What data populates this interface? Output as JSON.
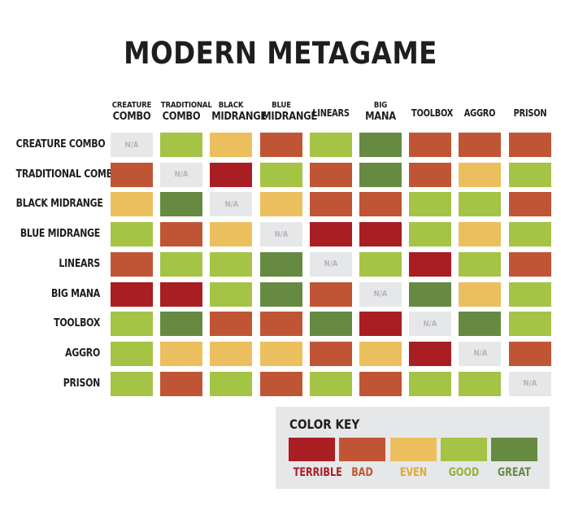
{
  "title": "MODERN METAGAME",
  "na_label": "N/A",
  "colors": {
    "terrible": "#a81e23",
    "bad": "#c05535",
    "even": "#ecbf5e",
    "good": "#a5c345",
    "great": "#668a42",
    "na": "#e6e7e8"
  },
  "chart_data": {
    "type": "heatmap",
    "title": "MODERN METAGAME",
    "row_labels": [
      "CREATURE COMBO",
      "TRADITIONAL COMBO",
      "BLACK MIDRANGE",
      "BLUE MIDRANGE",
      "LINEARS",
      "BIG MANA",
      "TOOLBOX",
      "AGGRO",
      "PRISON"
    ],
    "columns": [
      {
        "line1": "CREATURE",
        "line2": "COMBO"
      },
      {
        "line1": "TRADITIONAL",
        "line2": "COMBO"
      },
      {
        "line1": "BLACK",
        "line2": "MIDRANGE"
      },
      {
        "line1": "BLUE",
        "line2": "MIDRANGE"
      },
      {
        "line1": "",
        "line2": "LINEARS"
      },
      {
        "line1": "BIG",
        "line2": "MANA"
      },
      {
        "line1": "",
        "line2": "TOOLBOX"
      },
      {
        "line1": "",
        "line2": "AGGRO"
      },
      {
        "line1": "",
        "line2": "PRISON"
      }
    ],
    "values": [
      [
        "na",
        "good",
        "even",
        "bad",
        "good",
        "great",
        "bad",
        "bad",
        "bad"
      ],
      [
        "bad",
        "na",
        "terrible",
        "good",
        "bad",
        "great",
        "bad",
        "even",
        "good"
      ],
      [
        "even",
        "great",
        "na",
        "even",
        "bad",
        "bad",
        "good",
        "good",
        "bad"
      ],
      [
        "good",
        "bad",
        "even",
        "na",
        "terrible",
        "terrible",
        "good",
        "even",
        "good"
      ],
      [
        "bad",
        "good",
        "good",
        "great",
        "na",
        "good",
        "terrible",
        "good",
        "bad"
      ],
      [
        "terrible",
        "terrible",
        "good",
        "great",
        "bad",
        "na",
        "great",
        "even",
        "good"
      ],
      [
        "good",
        "great",
        "bad",
        "bad",
        "great",
        "terrible",
        "na",
        "great",
        "good"
      ],
      [
        "good",
        "even",
        "even",
        "even",
        "bad",
        "even",
        "terrible",
        "na",
        "bad"
      ],
      [
        "good",
        "bad",
        "good",
        "bad",
        "good",
        "bad",
        "good",
        "good",
        "na"
      ]
    ]
  },
  "color_key": {
    "title": "COLOR KEY",
    "items": [
      {
        "key": "terrible",
        "label": "TERRIBLE",
        "text_color": "#a81e23"
      },
      {
        "key": "bad",
        "label": "BAD",
        "text_color": "#c05535"
      },
      {
        "key": "even",
        "label": "EVEN",
        "text_color": "#e0a83c"
      },
      {
        "key": "good",
        "label": "GOOD",
        "text_color": "#94b23a"
      },
      {
        "key": "great",
        "label": "GREAT",
        "text_color": "#668a42"
      }
    ]
  }
}
